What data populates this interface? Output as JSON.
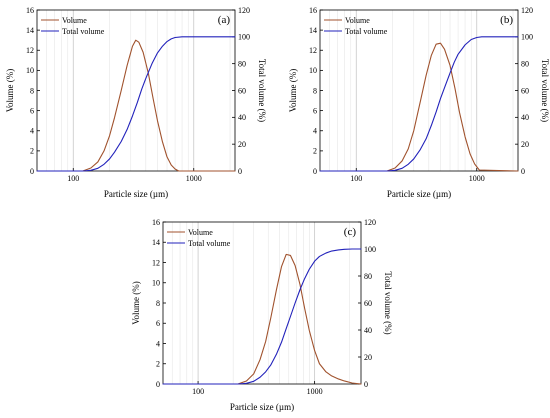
{
  "chart_data": [
    {
      "type": "line",
      "panel_label": "(a)",
      "xlabel": "Particle size (µm)",
      "ylabel": "Volume (%)",
      "ylabel_right": "Total volume (%)",
      "xscale": "log",
      "xlim": [
        50,
        2200
      ],
      "x_ticks": [
        100,
        1000
      ],
      "ylim": [
        0,
        16
      ],
      "y_ticks": [
        0,
        2,
        4,
        6,
        8,
        10,
        12,
        14,
        16
      ],
      "ylim_right": [
        0,
        120
      ],
      "y_ticks_right": [
        0,
        20,
        40,
        60,
        80,
        100,
        120
      ],
      "grid": "vertical log gridlines",
      "legend": "top-left",
      "series": [
        {
          "name": "Volume",
          "axis": "left",
          "color": "#a0522d",
          "x": [
            50,
            120,
            140,
            160,
            180,
            200,
            220,
            250,
            280,
            310,
            330,
            350,
            380,
            420,
            460,
            500,
            550,
            600,
            650,
            700,
            750,
            2200
          ],
          "y": [
            0,
            0,
            0.3,
            0.9,
            2.0,
            3.5,
            5.3,
            8.0,
            10.5,
            12.4,
            13.0,
            12.8,
            11.8,
            9.7,
            7.2,
            5.0,
            2.9,
            1.4,
            0.6,
            0.2,
            0,
            0
          ]
        },
        {
          "name": "Total volume",
          "axis": "right",
          "color": "#2222bb",
          "x": [
            50,
            120,
            140,
            160,
            180,
            200,
            220,
            250,
            280,
            310,
            340,
            370,
            400,
            450,
            500,
            550,
            600,
            650,
            700,
            800,
            900,
            2200
          ],
          "y": [
            0,
            0,
            0.5,
            2,
            5,
            9,
            14,
            22,
            31,
            41,
            51,
            61,
            69,
            80,
            88,
            93,
            96.5,
            98.5,
            99.5,
            100,
            100,
            100
          ]
        }
      ]
    },
    {
      "type": "line",
      "panel_label": "(b)",
      "xlabel": "Particle size (µm)",
      "ylabel": "Volume (%)",
      "ylabel_right": "Total volume (%)",
      "xscale": "log",
      "xlim": [
        50,
        2200
      ],
      "x_ticks": [
        100,
        1000
      ],
      "ylim": [
        0,
        16
      ],
      "y_ticks": [
        0,
        2,
        4,
        6,
        8,
        10,
        12,
        14,
        16
      ],
      "ylim_right": [
        0,
        120
      ],
      "y_ticks_right": [
        0,
        20,
        40,
        60,
        80,
        100,
        120
      ],
      "grid": "vertical log gridlines",
      "legend": "top-left",
      "series": [
        {
          "name": "Volume",
          "axis": "left",
          "color": "#a0522d",
          "x": [
            50,
            180,
            210,
            240,
            270,
            300,
            340,
            380,
            420,
            460,
            500,
            540,
            600,
            660,
            720,
            800,
            880,
            960,
            1050,
            2200
          ],
          "y": [
            0,
            0,
            0.3,
            1.0,
            2.2,
            4.0,
            6.9,
            9.5,
            11.5,
            12.6,
            12.7,
            12.1,
            10.5,
            8.2,
            5.8,
            3.4,
            1.7,
            0.7,
            0.1,
            0
          ]
        },
        {
          "name": "Total volume",
          "axis": "right",
          "color": "#2222bb",
          "x": [
            50,
            180,
            210,
            240,
            270,
            300,
            340,
            380,
            420,
            460,
            500,
            550,
            600,
            650,
            700,
            800,
            900,
            1000,
            1100,
            2200
          ],
          "y": [
            0,
            0,
            0.5,
            2,
            5,
            9,
            16,
            24,
            34,
            44,
            54,
            64,
            73,
            81,
            87,
            94,
            98,
            99.5,
            100,
            100
          ]
        }
      ]
    },
    {
      "type": "line",
      "panel_label": "(c)",
      "xlabel": "Particle size (µm)",
      "ylabel": "Volume (%)",
      "ylabel_right": "Total volume (%)",
      "xscale": "log",
      "xlim": [
        50,
        2500
      ],
      "x_ticks": [
        100,
        1000
      ],
      "ylim": [
        0,
        16
      ],
      "y_ticks": [
        0,
        2,
        4,
        6,
        8,
        10,
        12,
        14,
        16
      ],
      "ylim_right": [
        0,
        120
      ],
      "y_ticks_right": [
        0,
        20,
        40,
        60,
        80,
        100,
        120
      ],
      "grid": "vertical log gridlines",
      "legend": "top-left",
      "series": [
        {
          "name": "Volume",
          "axis": "left",
          "color": "#a0522d",
          "x": [
            50,
            220,
            260,
            300,
            340,
            380,
            420,
            470,
            520,
            570,
            620,
            680,
            750,
            820,
            900,
            1000,
            1100,
            1250,
            1400,
            1600,
            1800,
            2100,
            2500
          ],
          "y": [
            0,
            0,
            0.3,
            1.0,
            2.4,
            4.2,
            6.5,
            9.3,
            11.6,
            12.8,
            12.7,
            11.7,
            9.8,
            7.5,
            5.3,
            3.3,
            2.0,
            1.2,
            0.8,
            0.5,
            0.3,
            0.1,
            0
          ]
        },
        {
          "name": "Total volume",
          "axis": "right",
          "color": "#2222bb",
          "x": [
            50,
            220,
            260,
            300,
            340,
            380,
            420,
            470,
            520,
            570,
            620,
            680,
            750,
            820,
            900,
            1000,
            1100,
            1250,
            1400,
            1600,
            1800,
            2100,
            2500
          ],
          "y": [
            0,
            0,
            0.5,
            2,
            5,
            9,
            14,
            22,
            31,
            41,
            50,
            60,
            70,
            78,
            85,
            91,
            94.5,
            97,
            98.5,
            99.3,
            99.8,
            100,
            100
          ]
        }
      ]
    }
  ]
}
